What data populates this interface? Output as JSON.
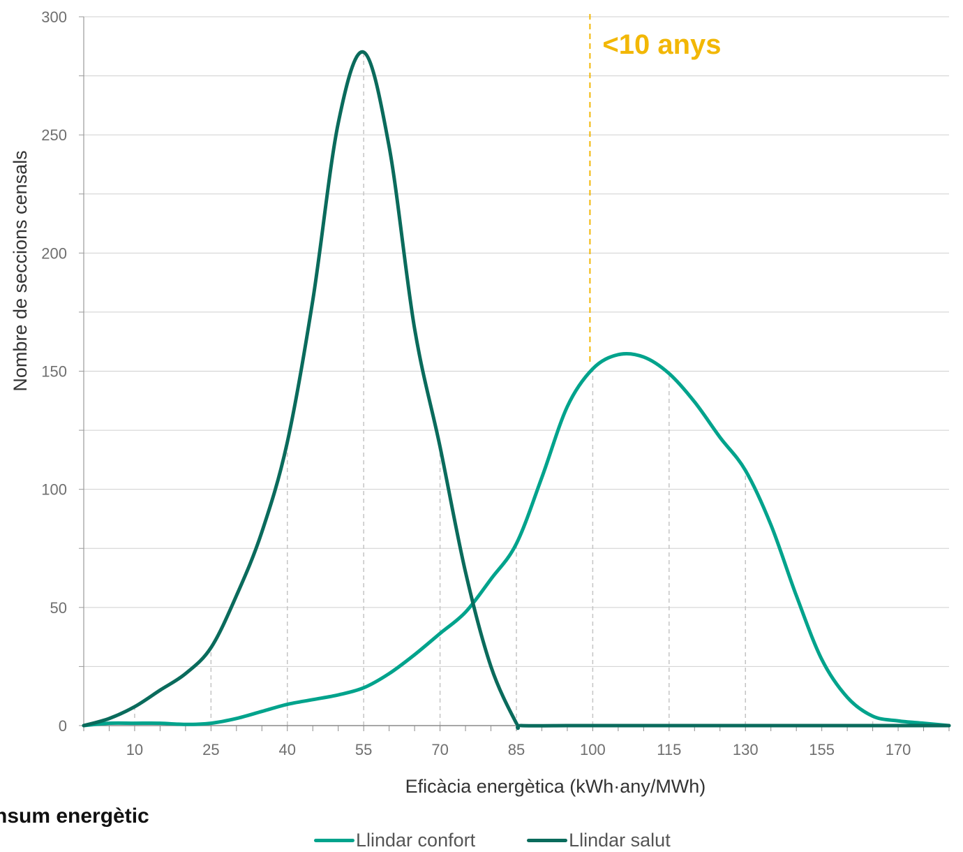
{
  "chart_data": {
    "type": "line",
    "xlabel": "Eficàcia energètica (kWh·any/MWh)",
    "ylabel": "Nombre de seccions censals",
    "xlim": [
      0,
      170
    ],
    "ylim": [
      0,
      300
    ],
    "x_ticks": [
      "10",
      "25",
      "40",
      "55",
      "70",
      "85",
      "100",
      "115",
      "130",
      "155",
      "170"
    ],
    "y_ticks": [
      "0",
      "50",
      "100",
      "150",
      "200",
      "250",
      "300"
    ],
    "grid": "horizontal",
    "legend_position": "bottom",
    "series": [
      {
        "name": "Llindar confort",
        "color": "#00a38c",
        "x": [
          0,
          5,
          10,
          15,
          20,
          25,
          30,
          35,
          40,
          45,
          50,
          55,
          60,
          65,
          70,
          75,
          80,
          85,
          90,
          95,
          100,
          105,
          110,
          115,
          120,
          125,
          130,
          135,
          140,
          145,
          150,
          155,
          160,
          165,
          170
        ],
        "y": [
          0,
          1,
          1,
          1,
          0.5,
          1,
          3,
          6,
          9,
          11,
          13,
          16,
          22,
          30,
          39,
          48,
          62,
          77,
          105,
          135,
          151,
          157,
          156,
          149,
          137,
          122,
          108,
          85,
          55,
          28,
          12,
          4,
          2,
          1,
          0
        ]
      },
      {
        "name": "Llindar salut",
        "color": "#0a6b5c",
        "x": [
          0,
          5,
          10,
          15,
          20,
          25,
          30,
          35,
          40,
          45,
          50,
          55,
          60,
          65,
          70,
          75,
          80,
          85,
          86,
          95,
          100,
          110,
          120,
          130,
          140,
          150,
          160,
          170
        ],
        "y": [
          0,
          3,
          8,
          15,
          22,
          33,
          55,
          82,
          120,
          180,
          255,
          285,
          245,
          168,
          118,
          65,
          25,
          1,
          0,
          0,
          0,
          0,
          0,
          0,
          0,
          0,
          0,
          0
        ]
      }
    ],
    "dashed_verticals": [
      10,
      25,
      40,
      55,
      70,
      85,
      100,
      115,
      130,
      155
    ],
    "annotation": {
      "text": "<10 anys",
      "x": 100,
      "color": "#f2b705"
    }
  },
  "partial_title": "nsum energètic"
}
